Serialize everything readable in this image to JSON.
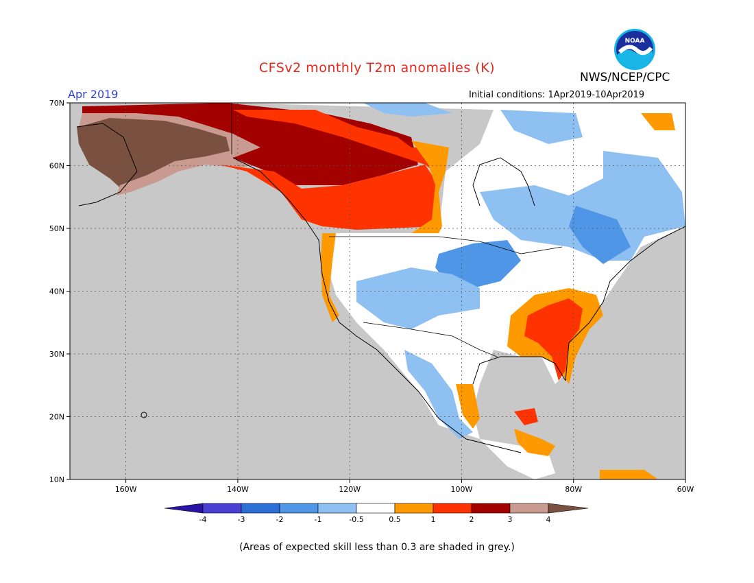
{
  "header": {
    "title": "CFSv2 monthly T2m anomalies (K)",
    "agency": "NWS/NCEP/CPC",
    "month": "Apr 2019",
    "initial_conditions": "Initial conditions: 1Apr2019-10Apr2019"
  },
  "logo": {
    "text": "NOAA",
    "icon": "noaa-logo-icon"
  },
  "map": {
    "lat_ticks": [
      "70N",
      "60N",
      "50N",
      "40N",
      "30N",
      "20N",
      "10N"
    ],
    "lon_ticks": [
      "160W",
      "140W",
      "120W",
      "100W",
      "80W",
      "60W"
    ],
    "lon_range": [
      -170,
      -60
    ],
    "lat_range": [
      10,
      70
    ],
    "grid": "dotted",
    "colors": {
      "ocean_grey": "#c8c8c8",
      "land_white": "#ffffff"
    },
    "anomaly_regions": [
      {
        "name": "alaska-strong-warm",
        "value": 4
      },
      {
        "name": "canada-west-warm",
        "value": 2
      },
      {
        "name": "great-lakes-cool",
        "value": -1
      },
      {
        "name": "southeast-us-warm",
        "value": 1.5
      },
      {
        "name": "rockies-cool",
        "value": -0.7
      }
    ]
  },
  "colorbar": {
    "ticks": [
      "-4",
      "-3",
      "-2",
      "-1",
      "-0.5",
      "0.5",
      "1",
      "2",
      "3",
      "4"
    ],
    "colors": [
      "#2a14a6",
      "#4a3fd3",
      "#2c6fd6",
      "#4f96e6",
      "#8ec0f2",
      "#ffffff",
      "#ff9900",
      "#ff3300",
      "#a30000",
      "#c89a90",
      "#7a5040"
    ]
  },
  "footnote": "(Areas of expected skill less than 0.3 are shaded in grey.)"
}
